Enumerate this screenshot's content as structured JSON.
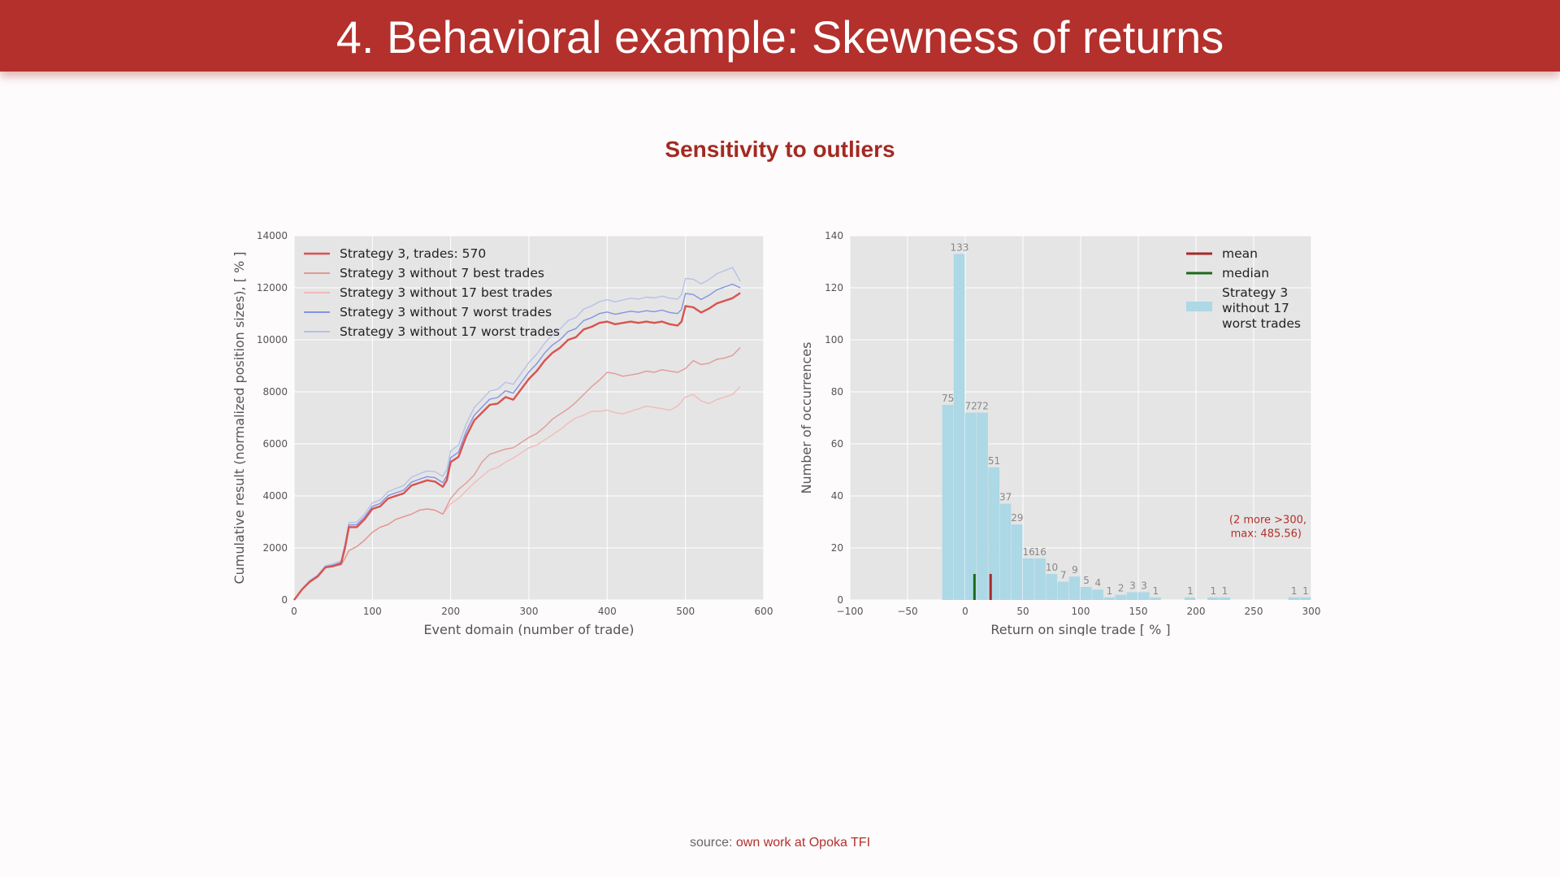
{
  "slide": {
    "title": "4. Behavioral example: Skewness of returns",
    "subtitle": "Sensitivity to outliers",
    "source_prefix": "source: ",
    "source_link": "own work at Opoka TFI"
  },
  "colors": {
    "brand": "#b3302c",
    "accent_text": "#a32a22",
    "plot_bg": "#e5e5e5",
    "grid": "#ffffff",
    "axis_text": "#555555",
    "bar": "#add8e6",
    "mean": "#a52a2a",
    "median": "#1b6a1b"
  },
  "chart_data": [
    {
      "type": "line",
      "xlabel": "Event domain (number of trade)",
      "ylabel": "Cumulative result (normalized position sizes), [ % ]",
      "xlim": [
        0,
        600
      ],
      "ylim": [
        0,
        14000
      ],
      "xticks": [
        0,
        100,
        200,
        300,
        400,
        500,
        600
      ],
      "yticks": [
        0,
        2000,
        4000,
        6000,
        8000,
        10000,
        12000,
        14000
      ],
      "grid": true,
      "legend_position": "top-left",
      "series": [
        {
          "name": "Strategy 3, trades: 570",
          "color": "#d9534f",
          "width": 2.4,
          "opacity": 1,
          "x": [
            0,
            10,
            20,
            30,
            40,
            50,
            60,
            65,
            70,
            80,
            90,
            100,
            110,
            120,
            130,
            140,
            150,
            160,
            170,
            180,
            190,
            195,
            200,
            210,
            220,
            230,
            240,
            250,
            260,
            270,
            280,
            290,
            300,
            310,
            320,
            330,
            340,
            350,
            360,
            370,
            380,
            390,
            400,
            410,
            420,
            430,
            440,
            450,
            460,
            470,
            480,
            490,
            495,
            500,
            510,
            520,
            530,
            540,
            550,
            560,
            570
          ],
          "y": [
            0,
            400,
            700,
            900,
            1250,
            1300,
            1400,
            2000,
            2800,
            2800,
            3100,
            3500,
            3600,
            3900,
            4000,
            4100,
            4400,
            4500,
            4600,
            4550,
            4350,
            4600,
            5300,
            5500,
            6300,
            6900,
            7200,
            7500,
            7550,
            7800,
            7700,
            8100,
            8500,
            8800,
            9200,
            9500,
            9700,
            10000,
            10100,
            10400,
            10500,
            10650,
            10700,
            10600,
            10650,
            10700,
            10650,
            10700,
            10650,
            10700,
            10600,
            10550,
            10700,
            11300,
            11250,
            11050,
            11200,
            11400,
            11500,
            11600,
            11800
          ]
        },
        {
          "name": "Strategy 3 without 7 best trades",
          "color": "#e38d89",
          "width": 1.4,
          "opacity": 0.85,
          "x": [
            0,
            10,
            20,
            30,
            40,
            50,
            60,
            65,
            70,
            80,
            90,
            100,
            110,
            120,
            130,
            140,
            150,
            160,
            170,
            180,
            190,
            200,
            210,
            220,
            230,
            240,
            250,
            260,
            270,
            280,
            290,
            300,
            310,
            320,
            330,
            340,
            350,
            360,
            370,
            380,
            390,
            400,
            410,
            420,
            430,
            440,
            450,
            460,
            470,
            480,
            490,
            500,
            510,
            520,
            530,
            540,
            550,
            560,
            570
          ],
          "y": [
            0,
            400,
            700,
            900,
            1250,
            1300,
            1350,
            1600,
            1900,
            2050,
            2300,
            2600,
            2800,
            2900,
            3100,
            3200,
            3300,
            3450,
            3500,
            3450,
            3300,
            3900,
            4250,
            4500,
            4800,
            5300,
            5600,
            5700,
            5800,
            5850,
            6050,
            6250,
            6400,
            6650,
            6950,
            7150,
            7350,
            7600,
            7900,
            8200,
            8450,
            8750,
            8700,
            8600,
            8650,
            8700,
            8800,
            8750,
            8850,
            8800,
            8750,
            8900,
            9200,
            9050,
            9100,
            9250,
            9300,
            9400,
            9700
          ]
        },
        {
          "name": "Strategy 3 without 17 best trades",
          "color": "#f0b9b6",
          "width": 1.4,
          "opacity": 0.95,
          "x": [
            0,
            10,
            20,
            30,
            40,
            50,
            60,
            65,
            70,
            80,
            90,
            100,
            110,
            120,
            130,
            140,
            150,
            160,
            170,
            180,
            190,
            200,
            210,
            220,
            230,
            240,
            250,
            260,
            270,
            280,
            290,
            300,
            310,
            320,
            330,
            340,
            350,
            360,
            370,
            380,
            390,
            400,
            410,
            420,
            430,
            440,
            450,
            460,
            470,
            480,
            490,
            500,
            510,
            520,
            530,
            540,
            550,
            560,
            570
          ],
          "y": [
            0,
            400,
            700,
            900,
            1250,
            1300,
            1350,
            1600,
            1900,
            2050,
            2300,
            2600,
            2800,
            2900,
            3100,
            3200,
            3300,
            3450,
            3500,
            3450,
            3300,
            3700,
            3900,
            4200,
            4500,
            4750,
            5000,
            5100,
            5300,
            5450,
            5650,
            5850,
            5950,
            6150,
            6350,
            6550,
            6800,
            7000,
            7100,
            7250,
            7250,
            7300,
            7200,
            7150,
            7250,
            7350,
            7450,
            7400,
            7350,
            7300,
            7450,
            7800,
            7900,
            7650,
            7550,
            7700,
            7800,
            7900,
            8200
          ]
        },
        {
          "name": "Strategy 3 without 7 worst trades",
          "color": "#7d8fe0",
          "width": 1.4,
          "opacity": 0.95,
          "x": [
            0,
            10,
            20,
            30,
            40,
            50,
            60,
            65,
            70,
            80,
            90,
            100,
            110,
            120,
            130,
            140,
            150,
            160,
            170,
            180,
            190,
            195,
            200,
            210,
            220,
            230,
            240,
            250,
            260,
            270,
            280,
            290,
            300,
            310,
            320,
            330,
            340,
            350,
            360,
            370,
            380,
            390,
            400,
            410,
            420,
            430,
            440,
            450,
            460,
            470,
            480,
            490,
            495,
            500,
            510,
            520,
            530,
            540,
            550,
            560,
            570
          ],
          "y": [
            0,
            420,
            730,
            930,
            1280,
            1340,
            1450,
            2080,
            2880,
            2890,
            3190,
            3600,
            3710,
            4010,
            4120,
            4220,
            4530,
            4640,
            4740,
            4700,
            4510,
            4770,
            5470,
            5680,
            6490,
            7100,
            7410,
            7720,
            7780,
            8040,
            7950,
            8360,
            8770,
            9080,
            9490,
            9800,
            10010,
            10320,
            10430,
            10740,
            10850,
            11010,
            11070,
            10980,
            11040,
            11100,
            11060,
            11120,
            11080,
            11140,
            11050,
            11010,
            11170,
            11780,
            11740,
            11550,
            11710,
            11920,
            12030,
            12140,
            12000
          ]
        },
        {
          "name": "Strategy 3 without 17 worst trades",
          "color": "#b5bfe6",
          "width": 1.4,
          "opacity": 0.95,
          "x": [
            0,
            10,
            20,
            30,
            40,
            50,
            60,
            65,
            70,
            80,
            90,
            100,
            110,
            120,
            130,
            140,
            150,
            160,
            170,
            180,
            190,
            195,
            200,
            210,
            220,
            230,
            240,
            250,
            260,
            270,
            280,
            290,
            300,
            310,
            320,
            330,
            340,
            350,
            360,
            370,
            380,
            390,
            400,
            410,
            420,
            430,
            440,
            450,
            460,
            470,
            480,
            490,
            495,
            500,
            510,
            520,
            530,
            540,
            550,
            560,
            570
          ],
          "y": [
            0,
            430,
            750,
            960,
            1320,
            1390,
            1510,
            2150,
            2970,
            2990,
            3300,
            3730,
            3850,
            4160,
            4280,
            4400,
            4720,
            4850,
            4960,
            4930,
            4750,
            5020,
            5730,
            5950,
            6770,
            7390,
            7710,
            8030,
            8100,
            8370,
            8290,
            8710,
            9130,
            9450,
            9870,
            10200,
            10420,
            10740,
            10860,
            11180,
            11300,
            11470,
            11540,
            11460,
            11530,
            11600,
            11570,
            11640,
            11610,
            11680,
            11600,
            11570,
            11740,
            12360,
            12330,
            12150,
            12320,
            12540,
            12660,
            12780,
            12250
          ]
        }
      ]
    },
    {
      "type": "bar",
      "title": "",
      "xlabel": "Return on single trade [ % ]",
      "ylabel": "Number of occurrences",
      "xlim": [
        -100,
        300
      ],
      "ylim": [
        0,
        140
      ],
      "xticks": [
        -100,
        -50,
        0,
        50,
        100,
        150,
        200,
        250,
        300
      ],
      "xtick_labels": [
        "−100",
        "−50",
        "0",
        "50",
        "100",
        "150",
        "200",
        "250",
        "300"
      ],
      "yticks": [
        0,
        20,
        40,
        60,
        80,
        100,
        120,
        140
      ],
      "bin_width": 10,
      "grid": true,
      "legend_position": "top-right",
      "bins": [
        {
          "left": -20,
          "count": 75,
          "label": "75"
        },
        {
          "left": -10,
          "count": 133,
          "label": "133"
        },
        {
          "left": 0,
          "count": 72,
          "label": "72"
        },
        {
          "left": 10,
          "count": 72,
          "label": "72"
        },
        {
          "left": 20,
          "count": 51,
          "label": "51"
        },
        {
          "left": 30,
          "count": 37,
          "label": "37"
        },
        {
          "left": 40,
          "count": 29,
          "label": "29"
        },
        {
          "left": 50,
          "count": 16,
          "label": "16"
        },
        {
          "left": 60,
          "count": 16,
          "label": "16"
        },
        {
          "left": 70,
          "count": 10,
          "label": "10"
        },
        {
          "left": 80,
          "count": 7,
          "label": "7"
        },
        {
          "left": 90,
          "count": 9,
          "label": "9"
        },
        {
          "left": 100,
          "count": 5,
          "label": "5"
        },
        {
          "left": 110,
          "count": 4,
          "label": "4"
        },
        {
          "left": 120,
          "count": 1,
          "label": "1"
        },
        {
          "left": 130,
          "count": 2,
          "label": "2"
        },
        {
          "left": 140,
          "count": 3,
          "label": "3"
        },
        {
          "left": 150,
          "count": 3,
          "label": "3"
        },
        {
          "left": 160,
          "count": 1,
          "label": "1"
        },
        {
          "left": 190,
          "count": 1,
          "label": "1"
        },
        {
          "left": 210,
          "count": 1,
          "label": "1"
        },
        {
          "left": 220,
          "count": 1,
          "label": "1"
        },
        {
          "left": 280,
          "count": 1,
          "label": "1"
        },
        {
          "left": 290,
          "count": 1,
          "label": "1"
        }
      ],
      "mean": 22,
      "median": 8,
      "mean_median_line_height": 10,
      "legend": [
        {
          "kind": "line",
          "name": "mean",
          "color_key": "mean"
        },
        {
          "kind": "line",
          "name": "median",
          "color_key": "median"
        },
        {
          "kind": "patch",
          "name": "Strategy 3",
          "name2": "without 17",
          "name3": "worst trades",
          "color_key": "bar"
        }
      ],
      "annotation": {
        "line1": "(2 more >300,",
        "line2": "max: 485.56)"
      }
    }
  ]
}
